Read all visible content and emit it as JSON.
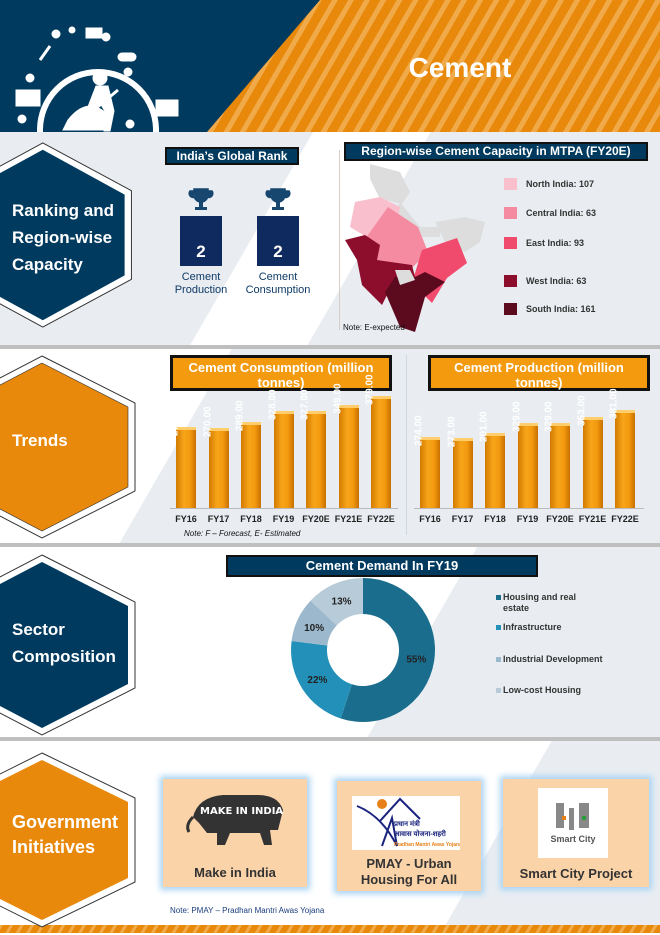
{
  "header": {
    "title": "Cement",
    "icon": "construction-worker-icon"
  },
  "sections": [
    {
      "label": "Ranking and Region-wise Capacity",
      "color": "#003a5f"
    },
    {
      "label": "Trends",
      "color": "#e8890b"
    },
    {
      "label": "Sector Composition",
      "color": "#003a5f"
    },
    {
      "label": "Government Initiatives",
      "color": "#e8890b"
    }
  ],
  "rank": {
    "title": "India’s Global Rank",
    "items": [
      {
        "value": "2",
        "label1": "Cement",
        "label2": "Production"
      },
      {
        "value": "2",
        "label1": "Cement",
        "label2": "Consumption"
      }
    ],
    "icon": "trophy-icon"
  },
  "map": {
    "title": "Region-wise Cement Capacity in MTPA (FY20E)",
    "note": "Note: E-expected",
    "legend": [
      {
        "label": "North India: 107",
        "color": "#f9bfcc"
      },
      {
        "label": "Central India: 63",
        "color": "#f48ba1"
      },
      {
        "label": "East India: 93",
        "color": "#f04a6d"
      },
      {
        "label": "West India: 63",
        "color": "#8c0e2c"
      },
      {
        "label": "South India: 161",
        "color": "#5c0a1e"
      }
    ]
  },
  "chart_data": [
    {
      "type": "bar",
      "title": "Cement Consumption (million tonnes)",
      "categories": [
        "FY16",
        "FY17",
        "FY18",
        "FY19",
        "FY20E",
        "FY21E",
        "FY22E"
      ],
      "values": [
        272,
        270,
        289,
        328,
        327,
        349,
        379
      ],
      "labels": [
        "272.00",
        "270.00",
        "289.00",
        "328.00",
        "327.00",
        "349.00",
        "379.00"
      ],
      "note": "Note: F – Forecast, E- Estimated",
      "color": "#f39a0f"
    },
    {
      "type": "bar",
      "title": "Cement Production (million tonnes)",
      "categories": [
        "FY16",
        "FY17",
        "FY18",
        "FY19",
        "FY20E",
        "FY21E",
        "FY22E"
      ],
      "values": [
        274,
        273,
        291,
        329,
        329,
        353,
        381
      ],
      "labels": [
        "274.00",
        "273.00",
        "291.00",
        "329.00",
        "329.00",
        "353.00",
        "381.00"
      ],
      "color": "#f39a0f"
    },
    {
      "type": "pie",
      "title": "Cement Demand In FY19",
      "donut": true,
      "legend_position": "right",
      "slices": [
        {
          "name": "Housing and real estate",
          "value": 55,
          "label": "55%",
          "color": "#1b6d8d"
        },
        {
          "name": "Infrastructure",
          "value": 22,
          "label": "22%",
          "color": "#2290b8"
        },
        {
          "name": "Industrial Development",
          "value": 10,
          "label": "10%",
          "color": "#9cb8cc"
        },
        {
          "name": "Low-cost Housing",
          "value": 13,
          "label": "13%",
          "color": "#b7cbd9"
        }
      ]
    }
  ],
  "initiatives": {
    "cards": [
      {
        "title": "Make in India",
        "logo": "MAKE IN INDIA"
      },
      {
        "title1": "PMAY - Urban",
        "title2": "Housing For All",
        "logo": "प्रधान मंत्री आवास योजना-शहरी Pradhan Mantri Awas Yojana-Urban"
      },
      {
        "title": "Smart City Project",
        "logo": "Smart City"
      }
    ],
    "note": "Note: PMAY – Pradhan Mantri Awas Yojana"
  }
}
